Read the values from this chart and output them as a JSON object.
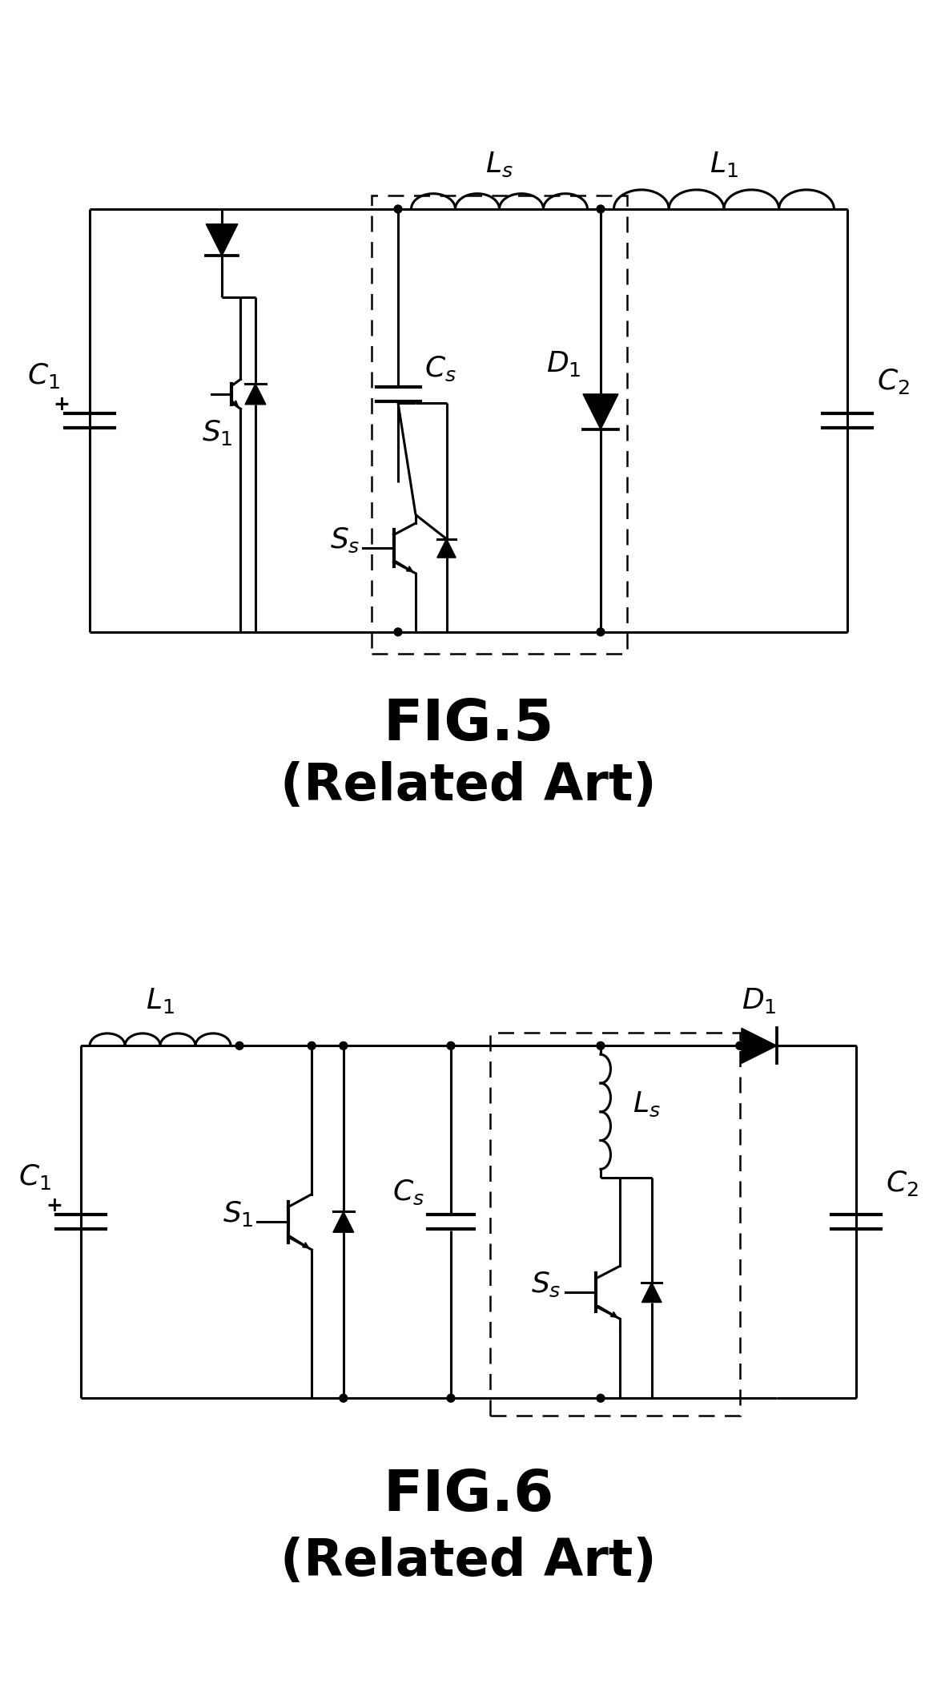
{
  "fig5_title": "FIG.5",
  "fig5_subtitle": "(Related Art)",
  "fig6_title": "FIG.6",
  "fig6_subtitle": "(Related Art)",
  "line_color": "#000000",
  "line_width": 2.2,
  "background_color": "#ffffff",
  "title_fontsize": 52,
  "subtitle_fontsize": 46,
  "label_fontsize": 26
}
